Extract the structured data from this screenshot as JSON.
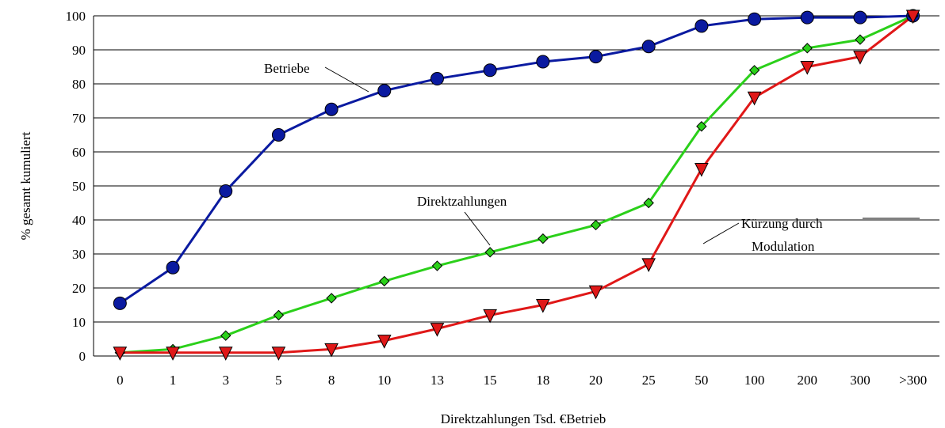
{
  "chart_data": {
    "type": "line",
    "categories": [
      "0",
      "1",
      "3",
      "5",
      "8",
      "10",
      "13",
      "15",
      "18",
      "20",
      "25",
      "50",
      "100",
      "200",
      "300",
      ">300"
    ],
    "series": [
      {
        "name": "Betriebe",
        "color": "#0a1aa0",
        "marker": "circle",
        "values": [
          15.5,
          26,
          48.5,
          65,
          72.5,
          78,
          81.5,
          84,
          86.5,
          88,
          91,
          97,
          99,
          99.5,
          99.5,
          100
        ]
      },
      {
        "name": "Direktzahlungen",
        "color": "#2bd01a",
        "marker": "diamond",
        "values": [
          1,
          2,
          6,
          12,
          17,
          22,
          26.5,
          30.5,
          34.5,
          38.5,
          45,
          67.5,
          84,
          90.5,
          93,
          100
        ]
      },
      {
        "name": "Kürzung durch Modulation",
        "color": "#e01818",
        "marker": "triangle-down",
        "values": [
          1,
          1,
          1,
          1,
          2,
          4.5,
          8,
          12,
          15,
          19,
          27,
          55,
          76,
          85,
          88,
          100
        ]
      }
    ],
    "annotations": {
      "betriebe": "Betriebe",
      "direktzahlungen": "Direktzahlungen",
      "kuerzung_line1": "Kürzung durch",
      "kuerzung_line2": "Modulation"
    },
    "xlabel": "Direktzahlungen Tsd. €Betrieb",
    "ylabel": "% gesamt kumuliert",
    "ylim": [
      0,
      100
    ],
    "yticks": [
      0,
      10,
      20,
      30,
      40,
      50,
      60,
      70,
      80,
      90,
      100
    ],
    "grid": "horizontal",
    "legend": "none"
  }
}
